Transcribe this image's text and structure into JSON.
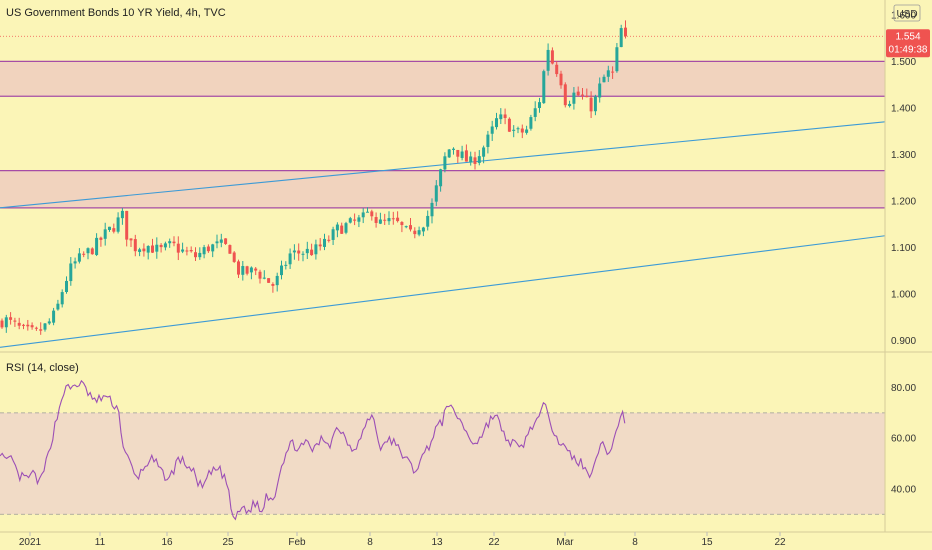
{
  "header": {
    "title": "US Government Bonds 10 YR Yield, 4h, TVC",
    "currency": "USD"
  },
  "price_badge": {
    "price": "1.554",
    "countdown": "01:49:38",
    "color": "#ef5350"
  },
  "rsi_panel": {
    "label": "RSI (14, close)",
    "ticks": [
      "80.00",
      "60.00",
      "40.00"
    ]
  },
  "colors": {
    "background": "#fbf5b7",
    "candle_up": "#26a69a",
    "candle_down": "#ef5350",
    "zone_fill": "#eecdc0",
    "zone_border": "#a64ca6",
    "trendline": "#3c9ad6",
    "rsi_line": "#9c4fb5",
    "rsi_band": "#f0d8c8"
  },
  "chart_data": [
    {
      "type": "candlestick",
      "title": "US Government Bonds 10 YR Yield, 4h, TVC",
      "x_ticks": [
        "2021",
        "11",
        "16",
        "25",
        "Feb",
        "8",
        "13",
        "22",
        "Mar",
        "8",
        "15",
        "22"
      ],
      "y_ticks": [
        "1.600",
        "1.500",
        "1.400",
        "1.300",
        "1.200",
        "1.100",
        "1.000",
        "0.900"
      ],
      "ylim": [
        0.875,
        1.632
      ],
      "last_price": 1.554,
      "path_close": [
        [
          0,
          0.94
        ],
        [
          5,
          0.945
        ],
        [
          12,
          0.935
        ],
        [
          24,
          0.92
        ],
        [
          36,
          0.915
        ],
        [
          48,
          0.935
        ],
        [
          56,
          0.96
        ],
        [
          64,
          1.02
        ],
        [
          72,
          1.06
        ],
        [
          82,
          1.08
        ],
        [
          94,
          1.1
        ],
        [
          106,
          1.13
        ],
        [
          116,
          1.15
        ],
        [
          122,
          1.172
        ],
        [
          126,
          1.13
        ],
        [
          134,
          1.1
        ],
        [
          146,
          1.105
        ],
        [
          160,
          1.092
        ],
        [
          172,
          1.105
        ],
        [
          184,
          1.09
        ],
        [
          196,
          1.08
        ],
        [
          208,
          1.1
        ],
        [
          220,
          1.105
        ],
        [
          230,
          1.098
        ],
        [
          236,
          1.052
        ],
        [
          244,
          1.045
        ],
        [
          256,
          1.05
        ],
        [
          266,
          1.03
        ],
        [
          274,
          1.018
        ],
        [
          282,
          1.05
        ],
        [
          290,
          1.085
        ],
        [
          302,
          1.09
        ],
        [
          314,
          1.092
        ],
        [
          326,
          1.11
        ],
        [
          338,
          1.14
        ],
        [
          350,
          1.15
        ],
        [
          362,
          1.16
        ],
        [
          372,
          1.18
        ],
        [
          378,
          1.15
        ],
        [
          388,
          1.155
        ],
        [
          398,
          1.15
        ],
        [
          410,
          1.125
        ],
        [
          418,
          1.145
        ],
        [
          426,
          1.16
        ],
        [
          432,
          1.19
        ],
        [
          438,
          1.24
        ],
        [
          446,
          1.3
        ],
        [
          452,
          1.32
        ],
        [
          460,
          1.3
        ],
        [
          470,
          1.28
        ],
        [
          482,
          1.31
        ],
        [
          490,
          1.34
        ],
        [
          498,
          1.38
        ],
        [
          508,
          1.365
        ],
        [
          516,
          1.345
        ],
        [
          526,
          1.35
        ],
        [
          534,
          1.39
        ],
        [
          540,
          1.42
        ],
        [
          544,
          1.48
        ],
        [
          548,
          1.53
        ],
        [
          552,
          1.5
        ],
        [
          560,
          1.47
        ],
        [
          566,
          1.41
        ],
        [
          574,
          1.43
        ],
        [
          582,
          1.425
        ],
        [
          590,
          1.4
        ],
        [
          596,
          1.42
        ],
        [
          602,
          1.46
        ],
        [
          610,
          1.478
        ],
        [
          614,
          1.47
        ],
        [
          618,
          1.54
        ],
        [
          622,
          1.575
        ],
        [
          626,
          1.554
        ]
      ],
      "zones": [
        [
          1.425,
          1.5
        ],
        [
          1.185,
          1.265
        ]
      ],
      "trendlines": [
        [
          [
            0,
            1.185
          ],
          [
            885,
            1.37
          ]
        ],
        [
          [
            0,
            0.885
          ],
          [
            885,
            1.125
          ]
        ]
      ]
    },
    {
      "type": "line",
      "title": "RSI (14, close)",
      "y_ticks": [
        "80.00",
        "60.00",
        "40.00"
      ],
      "ylim": [
        23,
        94
      ],
      "band": [
        30,
        70
      ],
      "path": [
        [
          0,
          55
        ],
        [
          6,
          50
        ],
        [
          12,
          52
        ],
        [
          18,
          45
        ],
        [
          26,
          44
        ],
        [
          34,
          46
        ],
        [
          40,
          42
        ],
        [
          46,
          50
        ],
        [
          52,
          60
        ],
        [
          58,
          70
        ],
        [
          64,
          79
        ],
        [
          72,
          80
        ],
        [
          80,
          82
        ],
        [
          88,
          78
        ],
        [
          96,
          74
        ],
        [
          104,
          77
        ],
        [
          112,
          74
        ],
        [
          118,
          72
        ],
        [
          124,
          55
        ],
        [
          130,
          50
        ],
        [
          136,
          44
        ],
        [
          142,
          47
        ],
        [
          150,
          52
        ],
        [
          156,
          50
        ],
        [
          162,
          46
        ],
        [
          170,
          44
        ],
        [
          178,
          52
        ],
        [
          186,
          50
        ],
        [
          194,
          46
        ],
        [
          202,
          40
        ],
        [
          210,
          46
        ],
        [
          218,
          48
        ],
        [
          226,
          44
        ],
        [
          232,
          30
        ],
        [
          236,
          28
        ],
        [
          242,
          33
        ],
        [
          248,
          31
        ],
        [
          256,
          35
        ],
        [
          262,
          30
        ],
        [
          266,
          38
        ],
        [
          274,
          36
        ],
        [
          280,
          48
        ],
        [
          286,
          54
        ],
        [
          292,
          58
        ],
        [
          300,
          56
        ],
        [
          308,
          58
        ],
        [
          314,
          55
        ],
        [
          322,
          60
        ],
        [
          330,
          58
        ],
        [
          338,
          65
        ],
        [
          346,
          60
        ],
        [
          352,
          56
        ],
        [
          358,
          58
        ],
        [
          366,
          65
        ],
        [
          372,
          70
        ],
        [
          376,
          63
        ],
        [
          382,
          55
        ],
        [
          388,
          60
        ],
        [
          394,
          58
        ],
        [
          400,
          55
        ],
        [
          406,
          52
        ],
        [
          414,
          47
        ],
        [
          422,
          52
        ],
        [
          430,
          58
        ],
        [
          436,
          64
        ],
        [
          442,
          66
        ],
        [
          448,
          75
        ],
        [
          454,
          69
        ],
        [
          460,
          68
        ],
        [
          466,
          62
        ],
        [
          474,
          58
        ],
        [
          480,
          60
        ],
        [
          488,
          66
        ],
        [
          496,
          70
        ],
        [
          502,
          62
        ],
        [
          508,
          59
        ],
        [
          514,
          58
        ],
        [
          520,
          55
        ],
        [
          526,
          60
        ],
        [
          532,
          65
        ],
        [
          540,
          68
        ],
        [
          546,
          75
        ],
        [
          552,
          65
        ],
        [
          560,
          58
        ],
        [
          566,
          55
        ],
        [
          574,
          52
        ],
        [
          582,
          50
        ],
        [
          588,
          45
        ],
        [
          594,
          50
        ],
        [
          600,
          58
        ],
        [
          606,
          55
        ],
        [
          612,
          56
        ],
        [
          618,
          66
        ],
        [
          622,
          70
        ],
        [
          626,
          66
        ]
      ]
    }
  ]
}
